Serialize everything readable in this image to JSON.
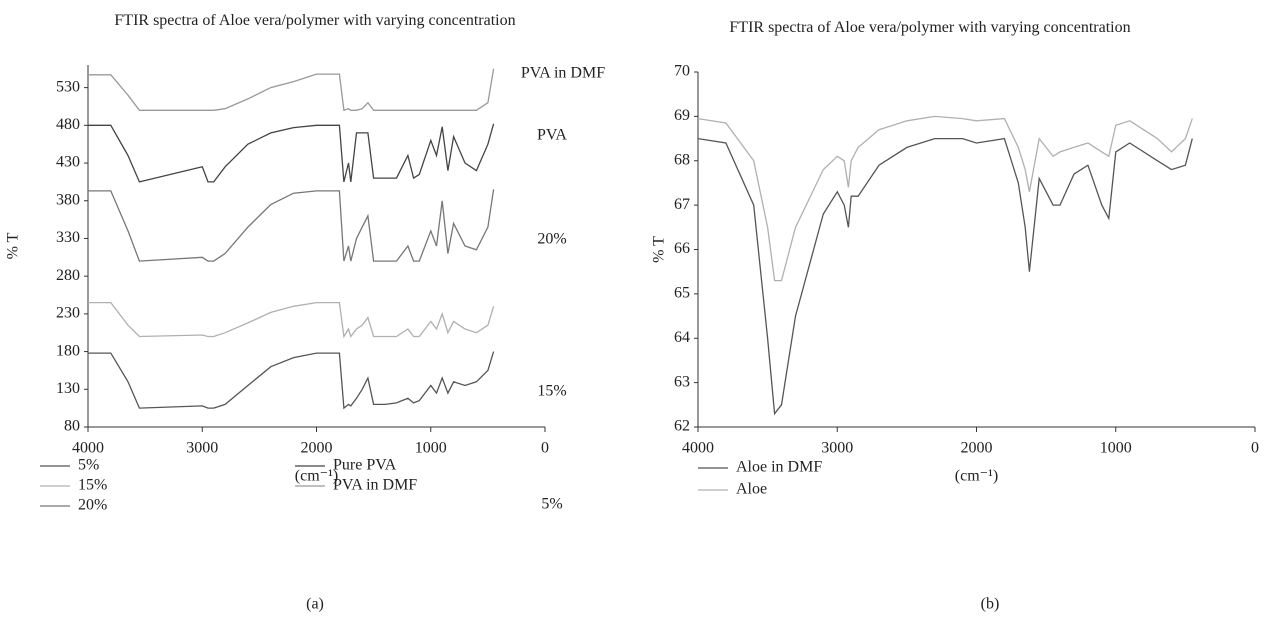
{
  "chart_data": [
    {
      "type": "line",
      "title": "FTIR spectra of Aloe vera/polymer with varying concentration",
      "xlabel": "(cm⁻¹)",
      "ylabel": "% T",
      "panel": "(a)",
      "xlim": [
        4000,
        0
      ],
      "xticks": [
        4000,
        3000,
        2000,
        1000,
        0
      ],
      "ylim": [
        80,
        560
      ],
      "yticks": [
        80,
        130,
        180,
        230,
        280,
        330,
        380,
        430,
        480,
        530
      ],
      "annotations": [
        "PVA in DMF",
        "PVA",
        "20%",
        "15%",
        "5%"
      ],
      "x": [
        4000,
        3800,
        3650,
        3550,
        3000,
        2950,
        2900,
        2800,
        2600,
        2400,
        2200,
        2000,
        1800,
        1760,
        1720,
        1700,
        1650,
        1600,
        1550,
        1500,
        1450,
        1400,
        1300,
        1200,
        1150,
        1100,
        1000,
        950,
        900,
        850,
        800,
        700,
        600,
        500,
        450
      ],
      "series": [
        {
          "name": "5%",
          "color": "#555555",
          "values": [
            178,
            178,
            140,
            105,
            108,
            105,
            105,
            110,
            135,
            160,
            172,
            178,
            178,
            105,
            110,
            108,
            118,
            130,
            145,
            110,
            110,
            110,
            112,
            118,
            112,
            115,
            135,
            125,
            145,
            125,
            140,
            135,
            140,
            155,
            180
          ]
        },
        {
          "name": "15%",
          "color": "#b0b0b0",
          "values": [
            245,
            245,
            215,
            200,
            202,
            200,
            200,
            205,
            218,
            232,
            240,
            245,
            245,
            200,
            210,
            200,
            210,
            215,
            225,
            200,
            200,
            200,
            200,
            210,
            200,
            200,
            220,
            210,
            230,
            205,
            220,
            210,
            205,
            215,
            240
          ]
        },
        {
          "name": "20%",
          "color": "#777777",
          "values": [
            393,
            393,
            340,
            300,
            305,
            300,
            300,
            310,
            345,
            375,
            390,
            393,
            393,
            300,
            320,
            300,
            330,
            345,
            360,
            300,
            300,
            300,
            300,
            320,
            300,
            300,
            340,
            320,
            380,
            310,
            350,
            320,
            315,
            345,
            395
          ]
        },
        {
          "name": "Pure PVA",
          "color": "#444444",
          "values": [
            480,
            480,
            440,
            405,
            425,
            405,
            405,
            425,
            455,
            470,
            477,
            480,
            480,
            405,
            430,
            405,
            470,
            470,
            470,
            410,
            410,
            410,
            410,
            440,
            410,
            415,
            460,
            440,
            478,
            420,
            465,
            430,
            420,
            455,
            482
          ]
        },
        {
          "name": "PVA in DMF",
          "color": "#999999",
          "values": [
            547,
            547,
            520,
            500,
            500,
            500,
            500,
            502,
            515,
            530,
            538,
            548,
            548,
            500,
            502,
            500,
            500,
            502,
            510,
            500,
            500,
            500,
            500,
            500,
            500,
            500,
            500,
            500,
            500,
            500,
            500,
            500,
            500,
            510,
            555
          ]
        }
      ]
    },
    {
      "type": "line",
      "title": "FTIR spectra of Aloe vera/polymer with varying concentration",
      "xlabel": "(cm⁻¹)",
      "ylabel": "% T",
      "panel": "(b)",
      "xlim": [
        4000,
        0
      ],
      "xticks": [
        4000,
        3000,
        2000,
        1000,
        0
      ],
      "ylim": [
        62,
        70
      ],
      "yticks": [
        62,
        63,
        64,
        65,
        66,
        67,
        68,
        69,
        70
      ],
      "x": [
        4000,
        3800,
        3600,
        3500,
        3450,
        3400,
        3300,
        3100,
        3000,
        2950,
        2920,
        2900,
        2850,
        2700,
        2500,
        2300,
        2100,
        2000,
        1800,
        1700,
        1650,
        1620,
        1550,
        1450,
        1400,
        1300,
        1200,
        1100,
        1050,
        1000,
        900,
        700,
        600,
        500,
        450
      ],
      "series": [
        {
          "name": "Aloe in DMF",
          "color": "#555555",
          "values": [
            68.5,
            68.4,
            67.0,
            64.0,
            62.3,
            62.5,
            64.5,
            66.8,
            67.3,
            67.0,
            66.5,
            67.2,
            67.2,
            67.9,
            68.3,
            68.5,
            68.5,
            68.4,
            68.5,
            67.5,
            66.5,
            65.5,
            67.6,
            67.0,
            67.0,
            67.7,
            67.9,
            67.0,
            66.7,
            68.2,
            68.4,
            68.0,
            67.8,
            67.9,
            68.5
          ]
        },
        {
          "name": "Aloe",
          "color": "#b0b0b0",
          "values": [
            68.95,
            68.85,
            68.0,
            66.5,
            65.3,
            65.3,
            66.5,
            67.8,
            68.1,
            68.0,
            67.4,
            68.0,
            68.3,
            68.7,
            68.9,
            69.0,
            68.95,
            68.9,
            68.95,
            68.3,
            67.8,
            67.3,
            68.5,
            68.1,
            68.2,
            68.3,
            68.4,
            68.2,
            68.1,
            68.8,
            68.9,
            68.5,
            68.2,
            68.5,
            68.95
          ]
        }
      ]
    }
  ]
}
